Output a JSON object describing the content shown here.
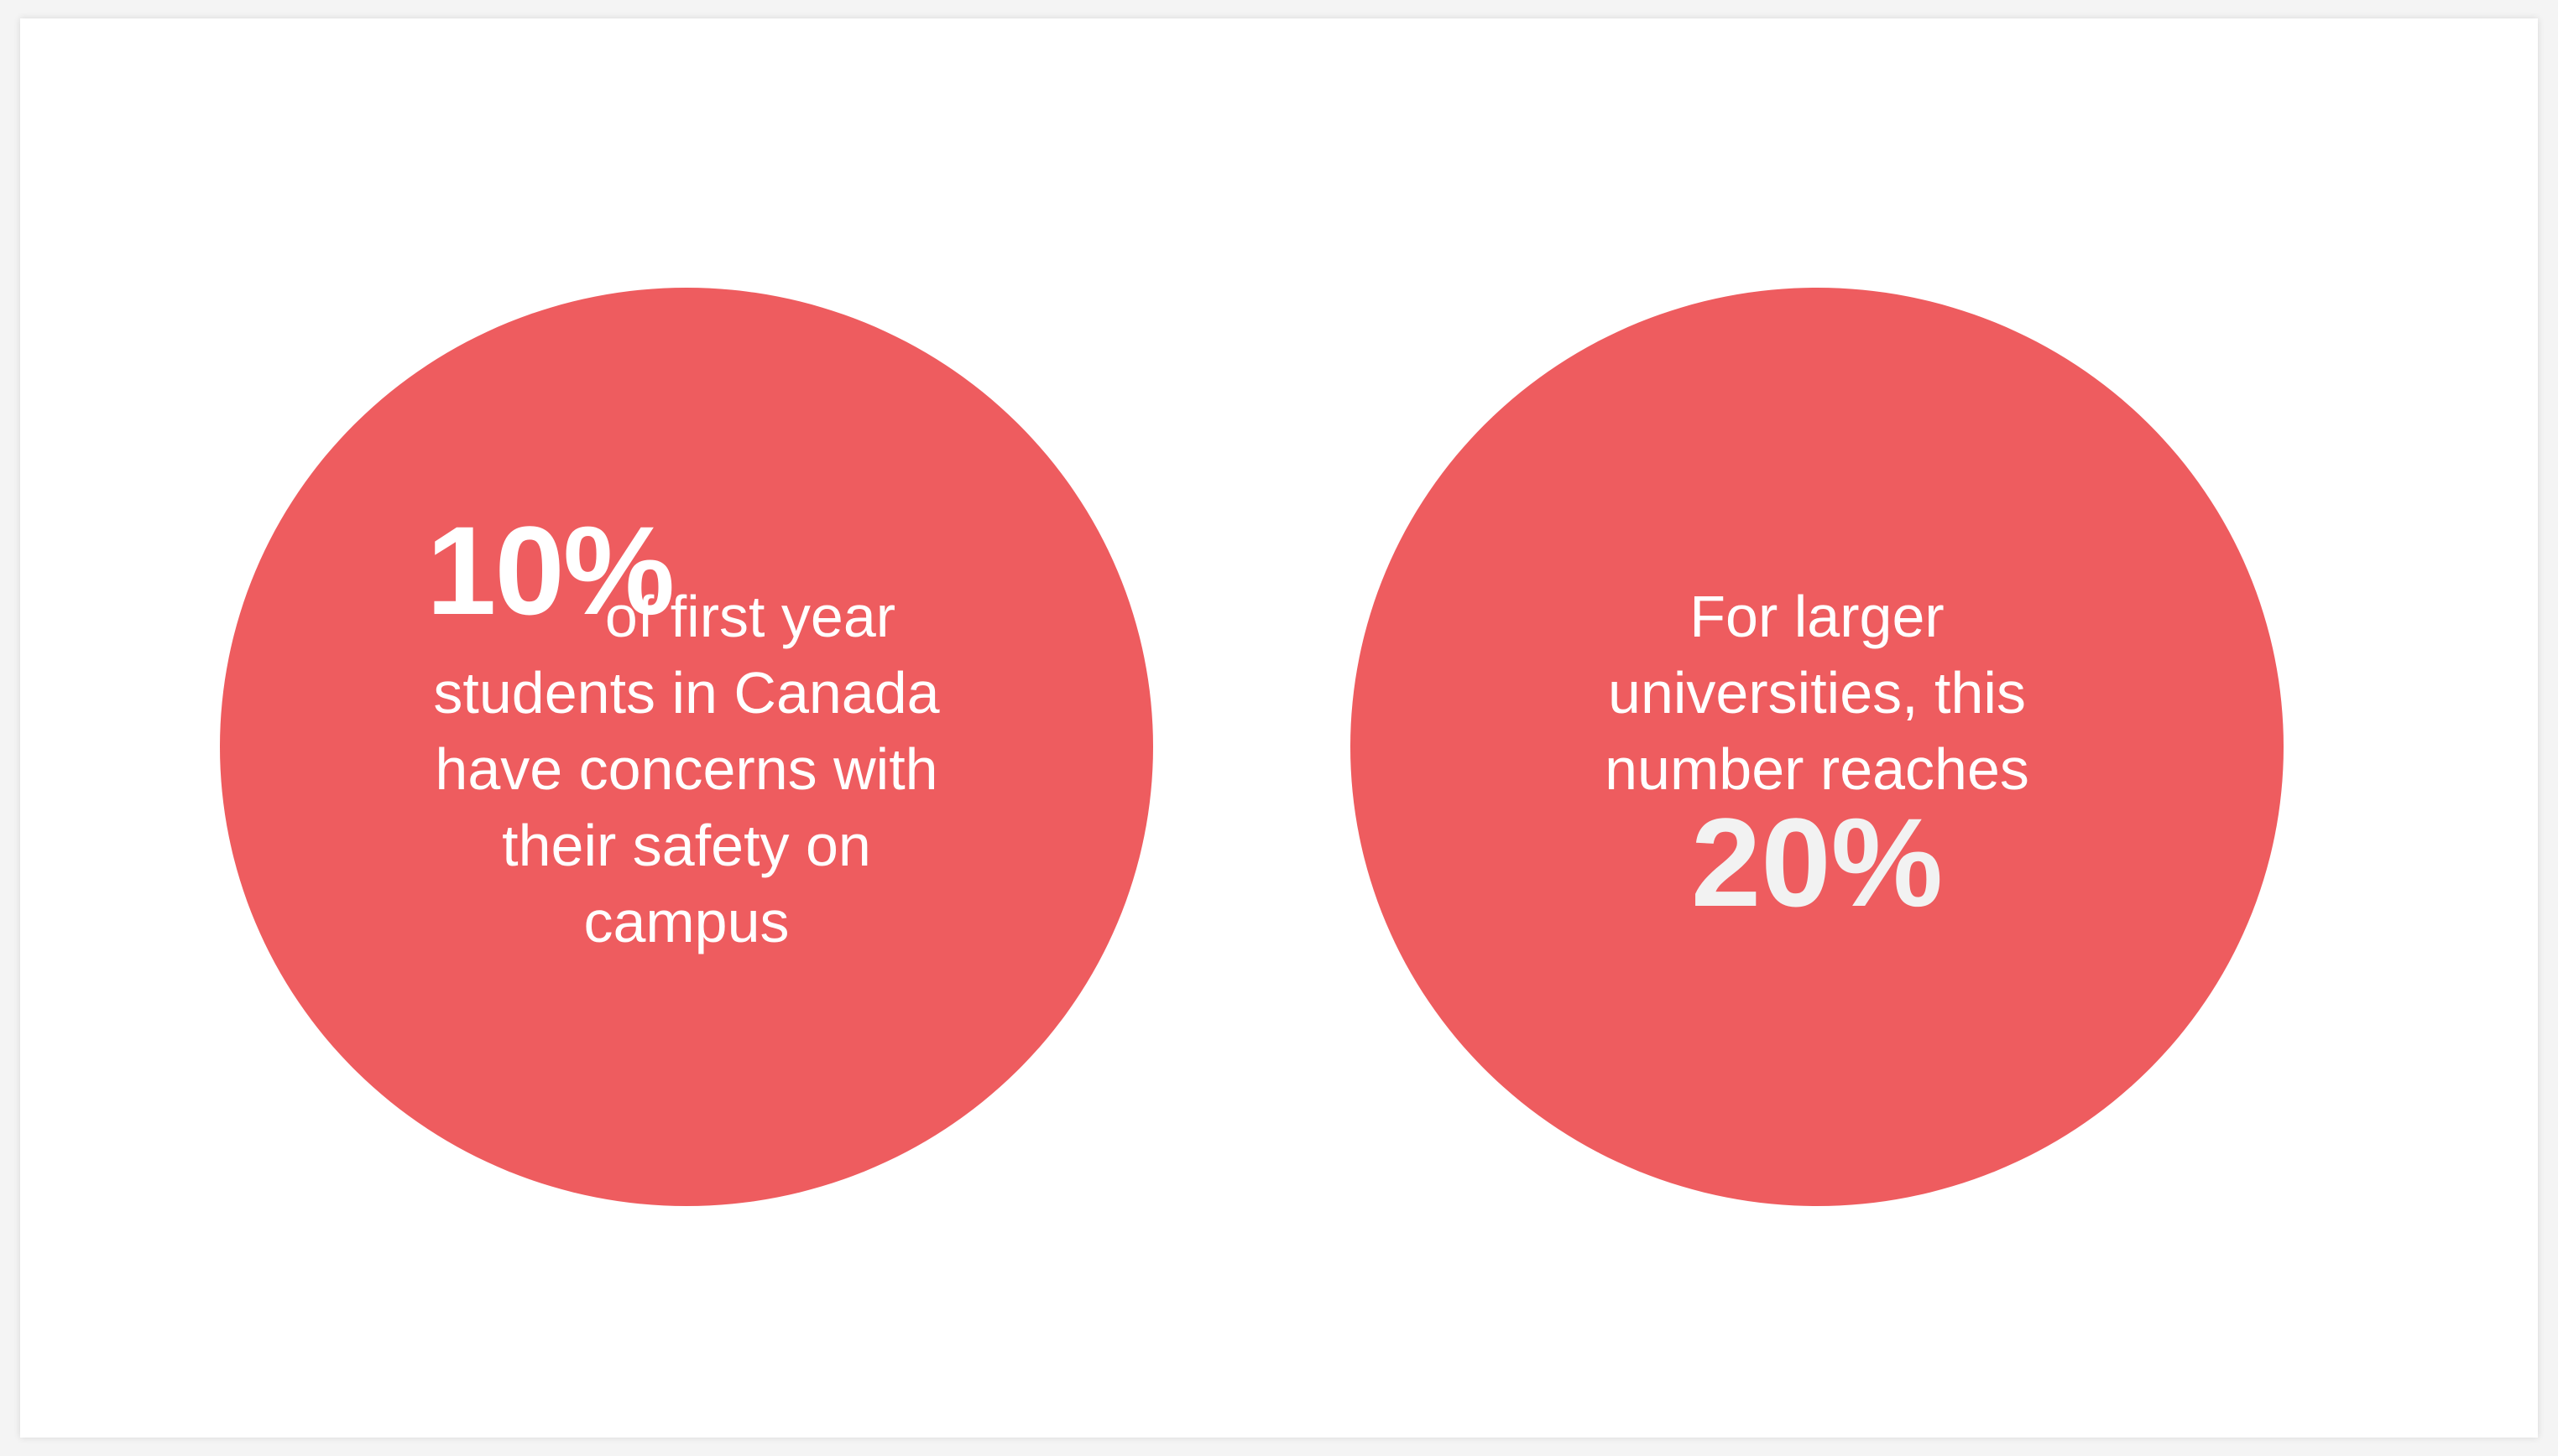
{
  "colors": {
    "circle_fill": "#ee5c5f",
    "text": "#ffffff",
    "background": "#ffffff"
  },
  "left_stat": {
    "number": "10%",
    "lines": [
      "of first year",
      "students in Canada",
      "have concerns with",
      "their safety on",
      "campus"
    ]
  },
  "right_stat": {
    "lines": [
      "For larger",
      "universities, this",
      "number reaches"
    ],
    "number": "20%"
  }
}
